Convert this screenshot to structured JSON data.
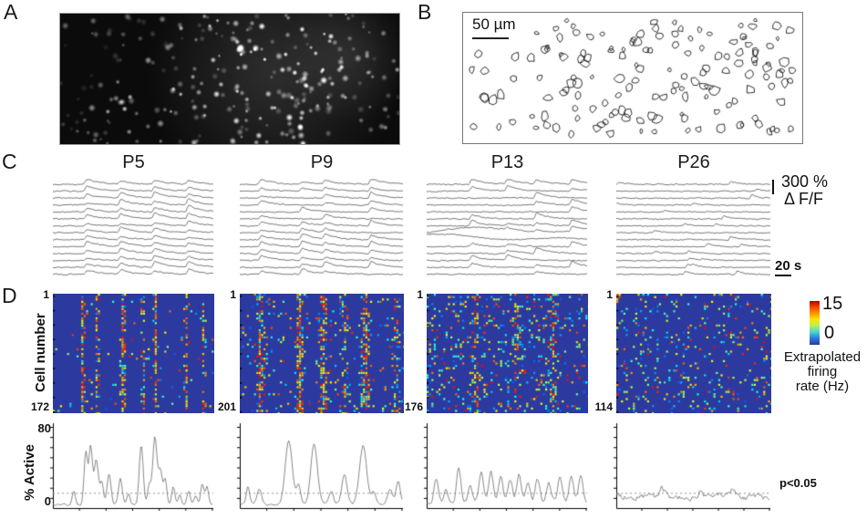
{
  "figure": {
    "panels": {
      "a": {
        "label": "A"
      },
      "b": {
        "label": "B",
        "scale_bar_label": "50 µm"
      },
      "c": {
        "label": "C",
        "col_titles": [
          "P5",
          "P9",
          "P13",
          "P26"
        ],
        "y_scale_value": "300 %",
        "y_scale_unit": "Δ F/F",
        "x_scale": "20 s"
      },
      "d": {
        "label": "D",
        "y_axis_label": "Cell number",
        "first_cell": "1",
        "cell_counts": [
          "172",
          "201",
          "176",
          "114"
        ],
        "colorbar_max": "15",
        "colorbar_min": "0",
        "colorbar_label_line1": "Extrapolated",
        "colorbar_label_line2": "firing",
        "colorbar_label_line3": "rate (Hz)"
      },
      "e": {
        "y_axis_label": "% Active",
        "y_max": "80",
        "y_min": "0",
        "significance": "p<0.05"
      }
    }
  },
  "colors": {
    "heatmap_background": "#2c3a9f",
    "trace_line": "#3f3f3f",
    "active_line": "#6a6a6a",
    "threshold_line": "#909090",
    "accent_red": "#cc1f10"
  },
  "chart_data": [
    {
      "id": "calcium-traces",
      "type": "line",
      "description": "Spontaneous ΔF/F calcium traces, 14 example cells per age; synchronized upward transients at P5–P13, mostly absent by P26",
      "ages": [
        "P5",
        "P9",
        "P13",
        "P26"
      ],
      "traces_per_panel": 14,
      "y_scale_bar": {
        "value": 300,
        "unit": "% ΔF/F"
      },
      "x_scale_bar": {
        "value": 20,
        "unit": "s"
      },
      "sync_event_times_frac": {
        "P5": [
          0.21,
          0.42,
          0.63,
          0.84
        ],
        "P9": [
          0.13,
          0.38,
          0.52,
          0.8
        ],
        "P13": [
          0.28,
          0.5,
          0.68,
          0.9
        ],
        "P26": []
      },
      "event_participation": {
        "P5": 1.0,
        "P9": 0.8,
        "P13": 0.6,
        "P26": 0
      }
    },
    {
      "id": "firing-rate-rasters",
      "type": "heatmap",
      "description": "Extrapolated firing-rate rasters (cell number × time); vertical stripes are synchronized network events that weaken with age",
      "ylabel": "Cell number",
      "cell_counts": [
        172,
        201,
        176,
        114
      ],
      "color_range_hz": [
        0,
        15
      ],
      "colormap": "jet",
      "colorbar_label": "Extrapolated firing rate (Hz)",
      "sync_bands_frac": {
        "P5": [
          [
            0.18,
            0.9
          ],
          [
            0.27,
            0.75
          ],
          [
            0.43,
            0.9
          ],
          [
            0.555,
            0.5
          ],
          [
            0.63,
            0.85
          ],
          [
            0.82,
            0.7
          ],
          [
            0.93,
            0.6
          ]
        ],
        "P9": [
          [
            0.12,
            0.6
          ],
          [
            0.36,
            0.85
          ],
          [
            0.5,
            0.7
          ],
          [
            0.63,
            0.4
          ],
          [
            0.76,
            0.8
          ],
          [
            0.95,
            0.5
          ]
        ],
        "P13": [
          [
            0.3,
            0.35
          ],
          [
            0.55,
            0.35
          ],
          [
            0.78,
            0.35
          ]
        ],
        "P26": []
      },
      "band_width_frac": {
        "P5": 0.01,
        "P9": 0.02,
        "P13": 0.025,
        "P26": 0.02
      },
      "base_density": {
        "P5": 0.025,
        "P9": 0.06,
        "P13": 0.13,
        "P26": 0.1
      }
    },
    {
      "id": "percent-active",
      "type": "line",
      "ylabel": "% Active",
      "ylim": [
        0,
        80
      ],
      "threshold": {
        "value": 15,
        "label": "p<0.05"
      },
      "series": [
        {
          "name": "P5",
          "baseline": 3,
          "noise": 2,
          "peaks": [
            [
              0.13,
              14,
              1.5
            ],
            [
              0.205,
              52,
              1.6
            ],
            [
              0.235,
              57,
              1.6
            ],
            [
              0.27,
              45,
              2
            ],
            [
              0.305,
              22,
              1.5
            ],
            [
              0.35,
              30,
              1.8
            ],
            [
              0.42,
              26,
              1.8
            ],
            [
              0.47,
              12,
              1.5
            ],
            [
              0.55,
              60,
              1.8
            ],
            [
              0.6,
              20,
              1.5
            ],
            [
              0.635,
              68,
              2
            ],
            [
              0.67,
              33,
              1.8
            ],
            [
              0.7,
              25,
              1.5
            ],
            [
              0.75,
              18,
              1.5
            ],
            [
              0.79,
              10,
              1.5
            ],
            [
              0.845,
              14,
              1.5
            ],
            [
              0.89,
              10,
              1.5
            ],
            [
              0.93,
              20,
              1.5
            ],
            [
              0.96,
              18,
              1.5
            ]
          ]
        },
        {
          "name": "P9",
          "baseline": 4,
          "noise": 2.5,
          "peaks": [
            [
              0.05,
              18,
              1.5
            ],
            [
              0.12,
              14,
              2
            ],
            [
              0.3,
              62,
              3.2
            ],
            [
              0.36,
              18,
              2
            ],
            [
              0.455,
              60,
              3
            ],
            [
              0.56,
              12,
              2
            ],
            [
              0.64,
              28,
              2.5
            ],
            [
              0.755,
              57,
              3.2
            ],
            [
              0.82,
              12,
              2
            ],
            [
              0.92,
              16,
              2
            ],
            [
              0.97,
              22,
              2
            ]
          ]
        },
        {
          "name": "P13",
          "baseline": 6,
          "noise": 3.5,
          "peaks": [
            [
              0.06,
              22,
              2
            ],
            [
              0.12,
              12,
              1.8
            ],
            [
              0.2,
              33,
              2
            ],
            [
              0.27,
              15,
              1.8
            ],
            [
              0.34,
              28,
              2
            ],
            [
              0.4,
              30,
              2
            ],
            [
              0.46,
              26,
              2
            ],
            [
              0.52,
              22,
              2
            ],
            [
              0.575,
              28,
              2
            ],
            [
              0.63,
              18,
              2
            ],
            [
              0.69,
              24,
              2
            ],
            [
              0.76,
              20,
              2
            ],
            [
              0.83,
              26,
              2
            ],
            [
              0.9,
              24,
              2
            ],
            [
              0.96,
              28,
              2
            ]
          ]
        },
        {
          "name": "P26",
          "baseline": 11,
          "noise": 6,
          "peaks": [
            [
              0.3,
              8,
              2.5
            ],
            [
              0.55,
              6,
              2.5
            ],
            [
              0.75,
              7,
              2.5
            ]
          ]
        }
      ]
    }
  ]
}
